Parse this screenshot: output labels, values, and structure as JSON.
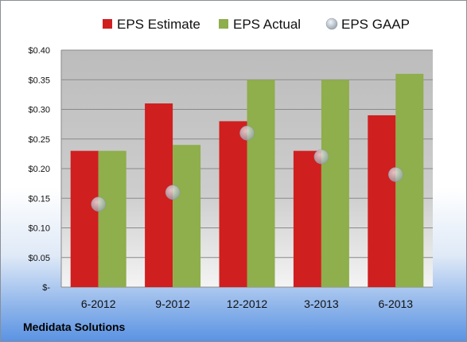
{
  "chart_data": {
    "type": "bar",
    "categories": [
      "6-2012",
      "9-2012",
      "12-2012",
      "3-2013",
      "6-2013"
    ],
    "series": [
      {
        "name": "EPS Estimate",
        "kind": "bar",
        "color": "#d01f1f",
        "values": [
          0.23,
          0.31,
          0.28,
          0.23,
          0.29
        ]
      },
      {
        "name": "EPS Actual",
        "kind": "bar",
        "color": "#8fae4c",
        "values": [
          0.23,
          0.24,
          0.35,
          0.35,
          0.36
        ]
      },
      {
        "name": "EPS GAAP",
        "kind": "scatter",
        "color": "#b9c2cc",
        "values": [
          0.14,
          0.16,
          0.26,
          0.22,
          0.19
        ]
      }
    ],
    "ylim": [
      0,
      0.4
    ],
    "yticks": [
      0,
      0.05,
      0.1,
      0.15,
      0.2,
      0.25,
      0.3,
      0.35,
      0.4
    ],
    "ytick_labels": [
      "$-",
      "$0.05",
      "$0.10",
      "$0.15",
      "$0.20",
      "$0.25",
      "$0.30",
      "$0.35",
      "$0.40"
    ],
    "grid": true,
    "legend_position": "top"
  },
  "footer": {
    "company": "Medidata Solutions"
  }
}
